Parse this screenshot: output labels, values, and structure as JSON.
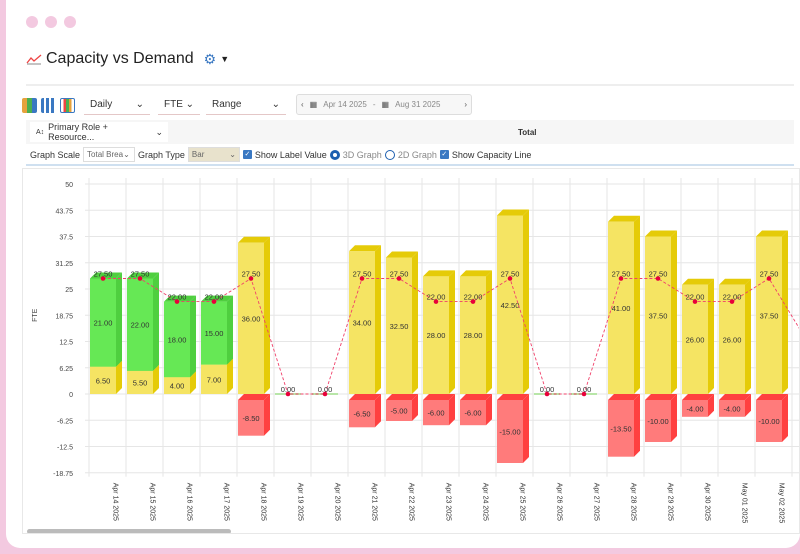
{
  "window": {
    "controls": [
      "close",
      "minimize",
      "maximize"
    ]
  },
  "header": {
    "title": "Capacity vs Demand",
    "title_icon": "line-chart-icon",
    "settings_icon": "gear-icon"
  },
  "toolbar": {
    "view_icons": [
      "chart-table-icon",
      "grid-icon",
      "bar-chart-icon"
    ],
    "period": "Daily",
    "unit": "FTE",
    "range": "Range",
    "date_from": "Apr 14 2025",
    "date_sep": "-",
    "date_to": "Aug 31 2025"
  },
  "grouping": {
    "label": "Primary Role + Resource...",
    "column_header": "Total"
  },
  "options": {
    "graph_scale_label": "Graph Scale",
    "graph_scale_value": "Total Brea",
    "graph_type_label": "Graph Type",
    "graph_type_value": "Bar",
    "show_label_value": "Show Label Value",
    "show_label_checked": true,
    "graph_3d": "3D Graph",
    "graph_2d": "2D Graph",
    "selected_mode": "3D Graph",
    "show_capacity_line": "Show Capacity Line",
    "show_capacity_checked": true
  },
  "colors": {
    "allocated": "#66e855",
    "available": "#f5e463",
    "over": "#ff7b7b",
    "capacity_line": "#f0406a"
  },
  "chart_data": {
    "type": "bar",
    "stacked": true,
    "three_d": true,
    "ylabel": "FTE",
    "ylim": [
      -18.75,
      50
    ],
    "yticks": [
      "50",
      "43.75",
      "37.5",
      "31.25",
      "25",
      "18.75",
      "12.5",
      "6.25",
      "0",
      "-6.25",
      "-12.5",
      "-18.75"
    ],
    "categories": [
      "Apr 14 2025",
      "Apr 15 2025",
      "Apr 16 2025",
      "Apr 17 2025",
      "Apr 18 2025",
      "Apr 19 2025",
      "Apr 20 2025",
      "Apr 21 2025",
      "Apr 22 2025",
      "Apr 23 2025",
      "Apr 24 2025",
      "Apr 25 2025",
      "Apr 26 2025",
      "Apr 27 2025",
      "Apr 28 2025",
      "Apr 29 2025",
      "Apr 30 2025",
      "May 01 2025",
      "May 02 2025"
    ],
    "series": [
      {
        "values": [
          6.5,
          5.5,
          4,
          7,
          36,
          0,
          0,
          34,
          32.5,
          28,
          28,
          42.5,
          0,
          0,
          41,
          37.5,
          26,
          26,
          37.5
        ]
      },
      {
        "values": [
          21,
          22,
          18,
          15,
          0,
          0,
          0,
          0,
          0,
          0,
          0,
          0,
          0,
          0,
          0,
          0,
          0,
          0,
          0
        ]
      },
      {
        "values": [
          0,
          0,
          0,
          0,
          -8.5,
          0,
          0,
          -6.5,
          -5,
          -6,
          -6,
          -15,
          0,
          0,
          -13.5,
          -10,
          -4,
          -4,
          -10
        ]
      }
    ],
    "capacity": [
      27.5,
      27.5,
      22,
      22,
      27.5,
      0,
      0,
      27.5,
      27.5,
      22,
      22,
      27.5,
      0,
      0,
      27.5,
      27.5,
      22,
      22,
      27.5
    ],
    "grid": true
  }
}
